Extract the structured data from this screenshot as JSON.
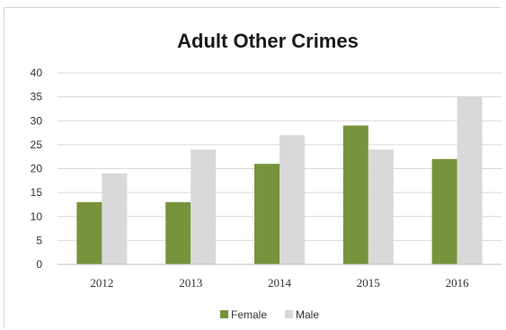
{
  "chart_data": {
    "type": "bar",
    "title": "Adult Other Crimes",
    "xlabel": "",
    "ylabel": "",
    "categories": [
      "2012",
      "2013",
      "2014",
      "2015",
      "2016"
    ],
    "series": [
      {
        "name": "Female",
        "values": [
          13,
          13,
          21,
          29,
          22
        ]
      },
      {
        "name": "Male",
        "values": [
          19,
          24,
          27,
          24,
          35
        ]
      }
    ],
    "ylim": [
      0,
      40
    ],
    "yticks": [
      0,
      5,
      10,
      15,
      20,
      25,
      30,
      35,
      40
    ],
    "grid": true,
    "legend_position": "bottom",
    "colors": {
      "Female": "#77933c",
      "Male": "#d9d9d9"
    }
  }
}
